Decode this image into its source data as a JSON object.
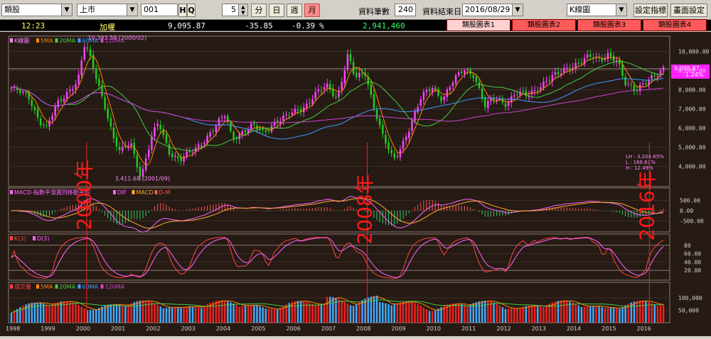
{
  "toolbar": {
    "category_value": "類股",
    "market_value": "上市",
    "code_value": "001",
    "h_label": "H",
    "q_label": "Q",
    "period_value": "5",
    "btn_minute": "分",
    "btn_day": "日",
    "btn_week": "週",
    "btn_month": "月",
    "data_count_label": "資料筆數",
    "data_count_value": "240",
    "end_date_label": "資料結束日",
    "end_date_value": "2016/08/29",
    "chart_type_value": "K線圖",
    "btn_indicator": "設定指標",
    "btn_screen": "畫面設定"
  },
  "status": {
    "time": "12:23",
    "index_name": "加權",
    "price": "9,095.87",
    "change": "-35.85",
    "pct": "-0.39",
    "pct_unit": "%",
    "volume": "2,941,460"
  },
  "tabs": [
    "類股圖表1",
    "類股圖表2",
    "類股圖表3",
    "類股圖表4"
  ],
  "main_panel": {
    "legend": [
      "K線圖",
      "5MA",
      "20MA",
      "60MA",
      "120MA"
    ],
    "y_ticks": [
      "10,000.00",
      "9,000.00",
      "8,000.00",
      "7,000.00",
      "6,000.00",
      "5,000.00",
      "4,000.00"
    ],
    "high_note": "10,393.59 (2000/02)",
    "low_note": "3,411.68 (2001/09)",
    "price_tag": "9,095.87",
    "pct_tag": "1.24%",
    "lh": [
      "LH : 3,204.65%",
      "L : 166.61%",
      "H : 12.49%"
    ]
  },
  "macd_panel": {
    "legend": [
      "MACD-指數平滑異同移動平均",
      "DIF",
      "MACD",
      "D-M"
    ],
    "y_ticks": [
      "500.00",
      "0.00",
      "-500.00"
    ]
  },
  "kd_panel": {
    "legend": [
      "K(3)",
      "D(3)"
    ],
    "y_ticks": [
      "80",
      "60.00",
      "40.00",
      "20.00"
    ]
  },
  "vol_panel": {
    "legend": [
      "成交量",
      "5MA",
      "20MA",
      "60MA",
      "120MA"
    ],
    "y_ticks": [
      "100,000",
      "50,000"
    ]
  },
  "x_axis": [
    "1998",
    "1999",
    "2000",
    "2001",
    "2002",
    "2003",
    "2004",
    "2005",
    "2006",
    "2007",
    "2008",
    "2009",
    "2010",
    "2011",
    "2012",
    "2013",
    "2014",
    "2015",
    "2016"
  ],
  "annotations": [
    "2000年",
    "2008年",
    "2016年"
  ],
  "colors": {
    "up": "#ff44ff",
    "down": "#22cc22",
    "ma5": "#ff8800",
    "ma20": "#44cc44",
    "ma60": "#4499ff",
    "ma120": "#cc44cc",
    "annotation": "#ff1a1a",
    "vol_up": "#ee2222",
    "vol_down": "#44aaff"
  }
}
